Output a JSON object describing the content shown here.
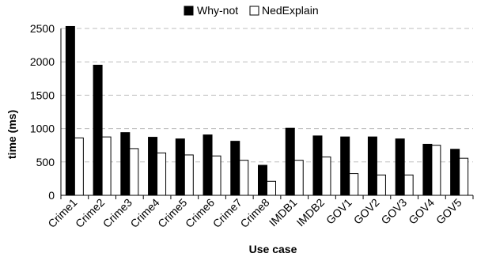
{
  "chart_data": {
    "type": "bar",
    "title": "",
    "xlabel": "Use case",
    "ylabel": "time (ms)",
    "ylim": [
      0,
      2500
    ],
    "yticks": [
      0,
      500,
      1000,
      1500,
      2000,
      2500
    ],
    "grid": true,
    "legend_position": "top-center",
    "categories": [
      "Crime1",
      "Crime2",
      "Crime3",
      "Crime4",
      "Crime5",
      "Crime6",
      "Crime7",
      "Crime8",
      "IMDB1",
      "IMDB2",
      "GOV1",
      "GOV2",
      "GOV3",
      "GOV4",
      "GOV5"
    ],
    "series": [
      {
        "name": "Why-not",
        "color": "#000000",
        "values": [
          2530,
          1950,
          940,
          870,
          845,
          905,
          810,
          450,
          1005,
          890,
          875,
          875,
          845,
          765,
          690
        ]
      },
      {
        "name": "NedExplain",
        "color": "#ffffff",
        "values": [
          860,
          875,
          700,
          635,
          605,
          590,
          525,
          210,
          525,
          575,
          325,
          305,
          305,
          750,
          555
        ]
      }
    ]
  }
}
